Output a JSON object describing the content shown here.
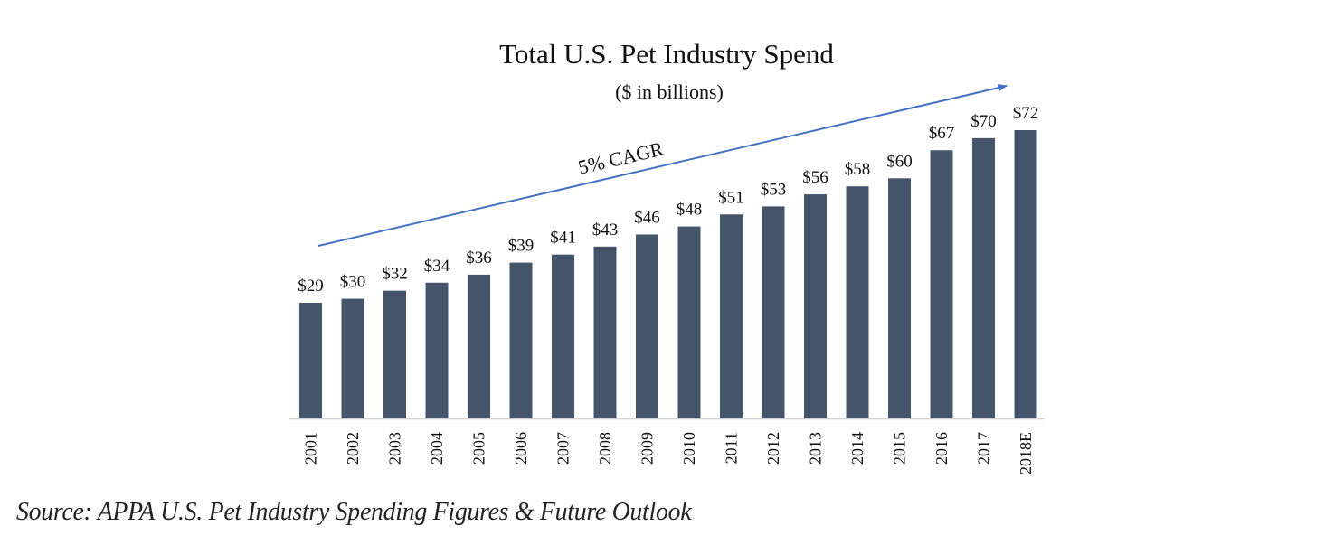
{
  "chart_data": {
    "type": "bar",
    "title": "Total U.S. Pet Industry Spend",
    "subtitle": "($ in billions)",
    "xlabel": "",
    "ylabel": "",
    "categories": [
      "2001",
      "2002",
      "2003",
      "2004",
      "2005",
      "2006",
      "2007",
      "2008",
      "2009",
      "2010",
      "2011",
      "2012",
      "2013",
      "2014",
      "2015",
      "2016",
      "2017",
      "2018E"
    ],
    "values": [
      29,
      30,
      32,
      34,
      36,
      39,
      41,
      43,
      46,
      48,
      51,
      53,
      56,
      58,
      60,
      67,
      70,
      72
    ],
    "data_labels": [
      "$29",
      "$30",
      "$32",
      "$34",
      "$36",
      "$39",
      "$41",
      "$43",
      "$46",
      "$48",
      "$51",
      "$53",
      "$56",
      "$58",
      "$60",
      "$67",
      "$70",
      "$72"
    ],
    "ylim": [
      0,
      75
    ],
    "grid": false,
    "bar_color": "#44546A",
    "annotation": {
      "text": "5% CAGR",
      "arrow_color": "#4472C4",
      "from_category": "2001",
      "to_category": "2018E"
    }
  },
  "source": "Source: APPA U.S. Pet Industry Spending Figures & Future Outlook"
}
